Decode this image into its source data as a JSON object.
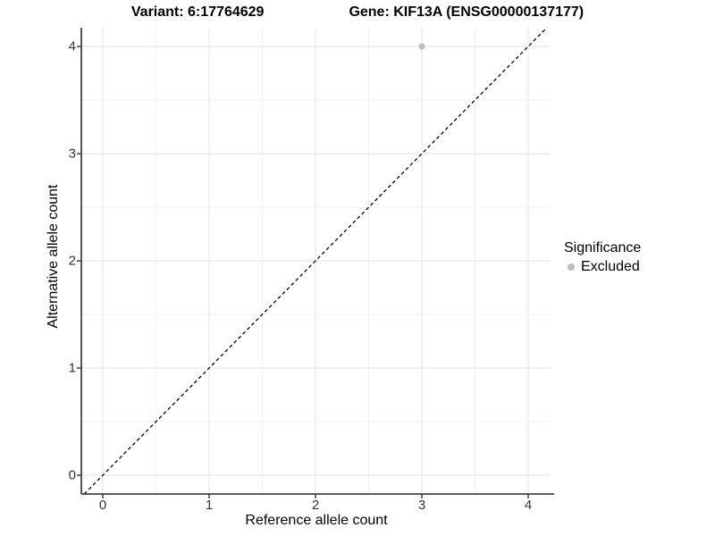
{
  "title": {
    "variant": "Variant: 6:17764629",
    "gene": "Gene: KIF13A (ENSG00000137177)"
  },
  "axes": {
    "x": {
      "label": "Reference allele count",
      "ticks": [
        0,
        1,
        2,
        3,
        4
      ]
    },
    "y": {
      "label": "Alternative allele count",
      "ticks": [
        0,
        1,
        2,
        3,
        4
      ]
    }
  },
  "legend": {
    "title": "Significance",
    "items": [
      {
        "label": "Excluded",
        "color": "#bdbdbd"
      }
    ]
  },
  "chart_data": {
    "type": "scatter",
    "title": "Variant: 6:17764629   Gene: KIF13A (ENSG00000137177)",
    "xlabel": "Reference allele count",
    "ylabel": "Alternative allele count",
    "xlim": [
      -0.2,
      4.2
    ],
    "ylim": [
      -0.18,
      4.18
    ],
    "x_ticks": [
      0,
      1,
      2,
      3,
      4
    ],
    "y_ticks": [
      0,
      1,
      2,
      3,
      4
    ],
    "grid": "major and minor, light gray on white",
    "legend_position": "right",
    "series": [
      {
        "name": "Excluded",
        "color": "#bdbdbd",
        "points": [
          {
            "x": 3,
            "y": 4
          }
        ]
      }
    ],
    "reference_line": {
      "type": "identity",
      "intercept": 0,
      "slope": 1,
      "style": "dashed",
      "color": "#000000"
    }
  },
  "colors": {
    "background": "#ffffff",
    "grid_major": "#e3e3e3",
    "grid_minor": "#f0f0f0",
    "axis_line": "#444444",
    "tick_mark": "#333333",
    "point": "#bdbdbd",
    "dashed_line": "#000000"
  }
}
